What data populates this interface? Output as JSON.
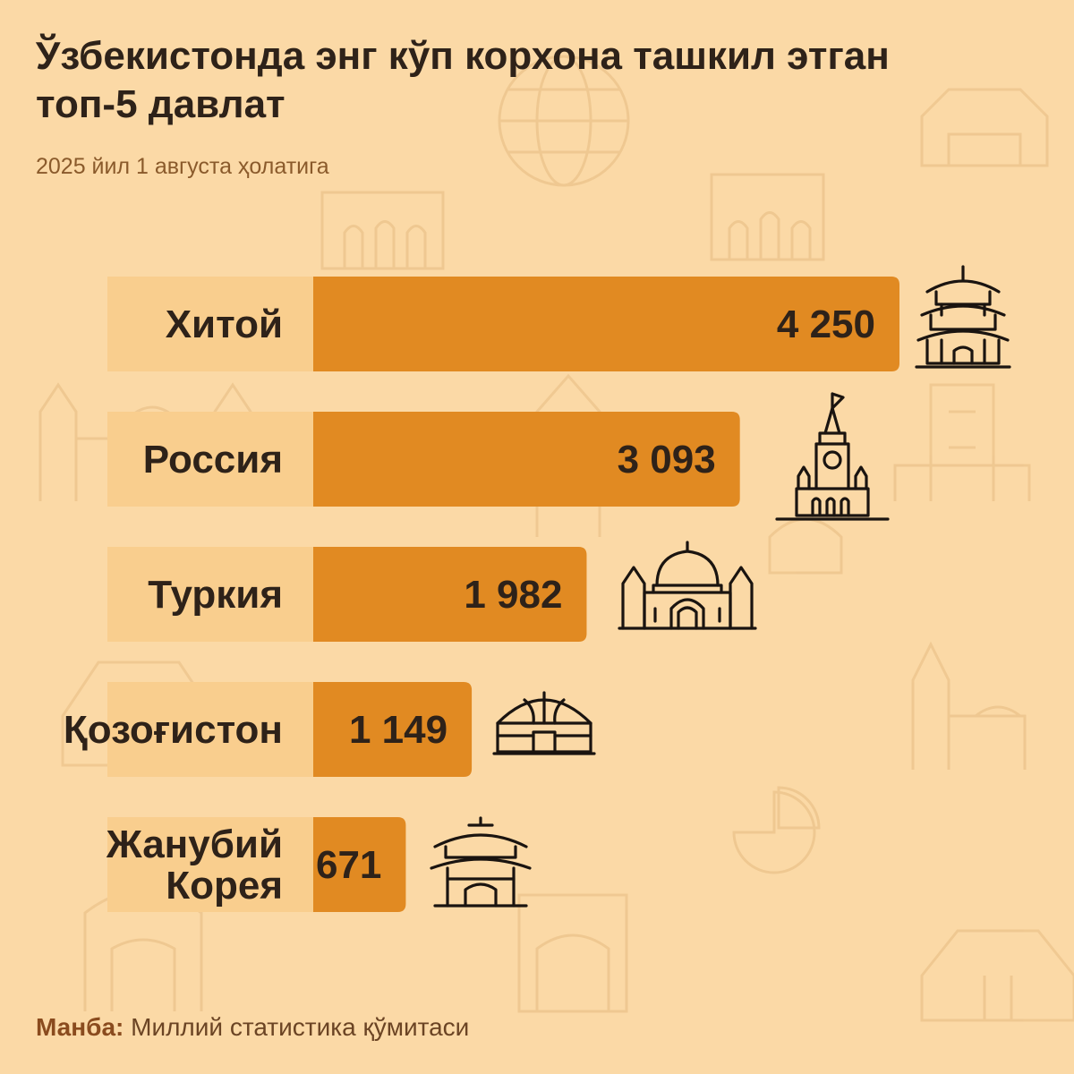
{
  "header": {
    "title": "Ўзбекистонда энг кўп корхона ташкил этган топ-5 давлат",
    "subtitle": "2025 йил 1 августа ҳолатига"
  },
  "colors": {
    "background": "#FBD9A6",
    "bar": "#E18A22",
    "bar_track": "#F9CE8E",
    "text": "#2E2219"
  },
  "chart_data": {
    "type": "bar",
    "orientation": "horizontal",
    "categories": [
      [
        "Хитой"
      ],
      [
        "Россия"
      ],
      [
        "Туркия"
      ],
      [
        "Қозоғистон"
      ],
      [
        "Жанубий",
        "Корея"
      ]
    ],
    "values": [
      4250,
      3093,
      1982,
      1149,
      671
    ],
    "value_labels": [
      "4 250",
      "3 093",
      "1 982",
      "1 149",
      "671"
    ],
    "icons": [
      "pagoda-icon",
      "kremlin-tower-icon",
      "mosque-icon",
      "yurt-icon",
      "korean-gate-icon"
    ],
    "xlim": [
      0,
      4250
    ],
    "grid": false,
    "legend": "none"
  },
  "footer": {
    "source_label": "Манба:",
    "source_value": "Миллий статистика қўмитаси"
  }
}
